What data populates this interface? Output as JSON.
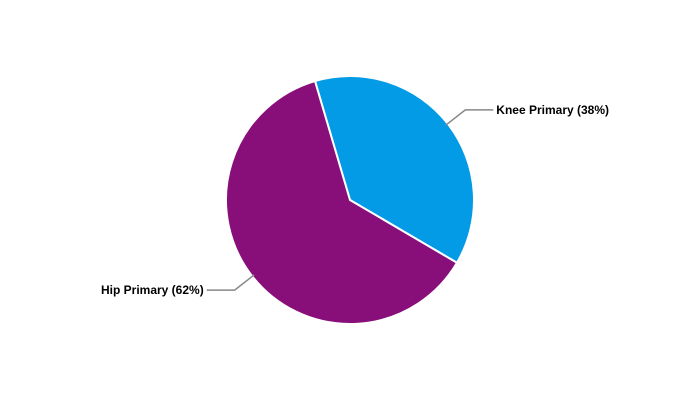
{
  "chart_data": {
    "type": "pie",
    "start_angle_deg": -16.4,
    "slices": [
      {
        "label": "Knee Primary (38%)",
        "value": 38,
        "color": "#039BE5"
      },
      {
        "label": "Hip Primary (62%)",
        "value": 62,
        "color": "#880E7A"
      }
    ]
  }
}
